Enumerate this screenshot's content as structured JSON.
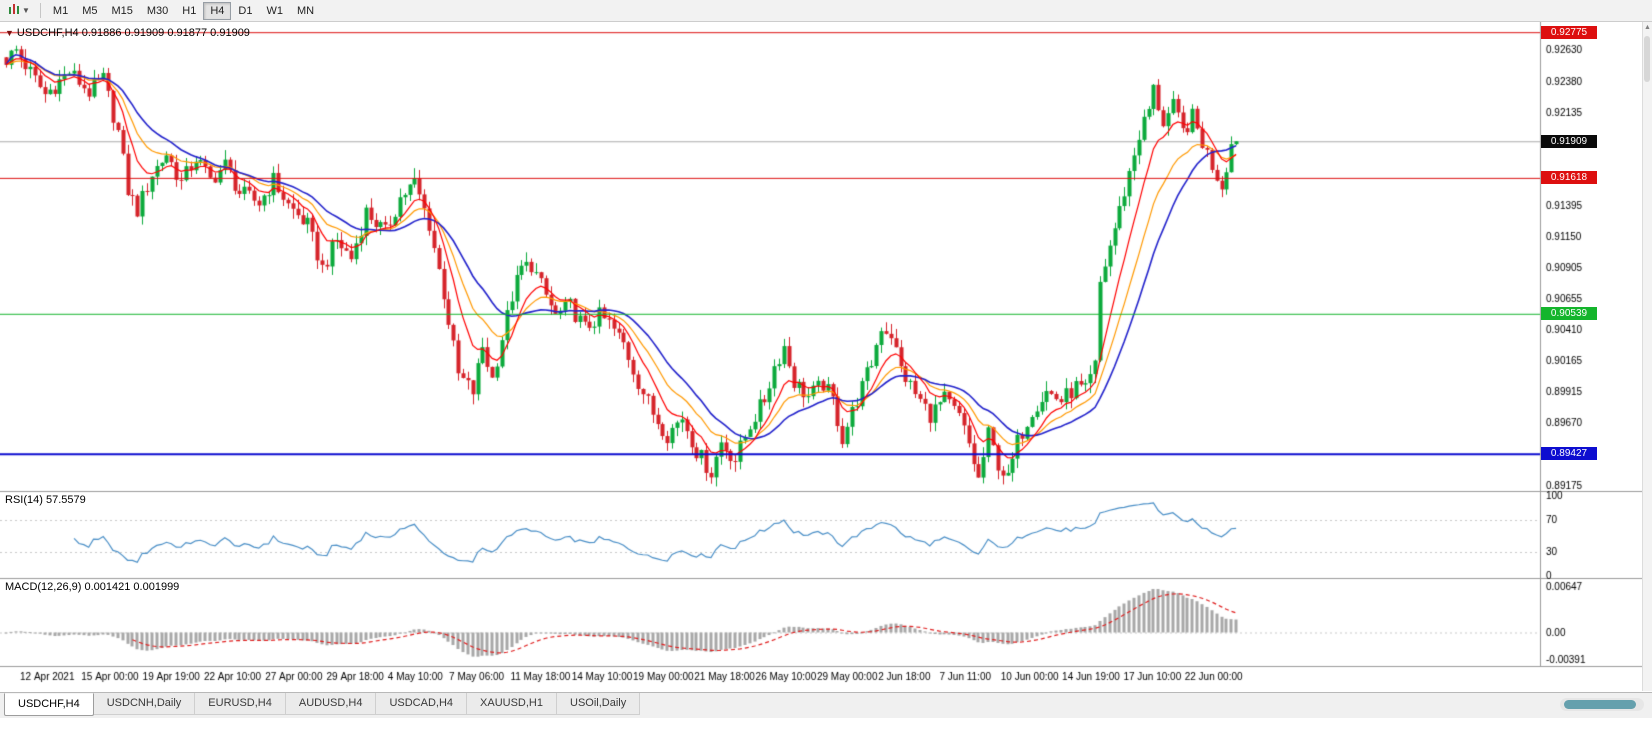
{
  "colors": {
    "bull": "#0caa3c",
    "bear": "#d6242b",
    "ma_fast": "#ff0000",
    "ma_mid": "#ff9900",
    "ma_slow": "#2323cc",
    "rsi_line": "#4a8fc7",
    "rsi_level": "#c9c9c9",
    "macd_hist": "#a8a8a8",
    "macd_signal": "#e02020",
    "axis_text": "#000000",
    "separator": "#9a9a9a"
  },
  "toolbar": {
    "chart_type_tooltip": "Chart type",
    "timeframes": [
      "M1",
      "M5",
      "M15",
      "M30",
      "H1",
      "H4",
      "D1",
      "W1",
      "MN"
    ],
    "active_timeframe": "H4"
  },
  "chart_header": {
    "marker": "▼",
    "text": "USDCHF,H4 0.91886 0.91909 0.91877 0.91909"
  },
  "price_tags": [
    {
      "label": "0.92775",
      "value": 0.92775,
      "bg": "#dd0f0f",
      "fg": "#ffffff",
      "line_color": "#dd0f0f",
      "line_width": 1,
      "last": false
    },
    {
      "label": "0.91909",
      "value": 0.91909,
      "bg": "#0a0a0a",
      "fg": "#ffffff",
      "line_color": "#ababab",
      "line_width": 1,
      "last": true
    },
    {
      "label": "0.91618",
      "value": 0.91618,
      "bg": "#dd0f0f",
      "fg": "#ffffff",
      "line_color": "#dd0f0f",
      "line_width": 1,
      "last": false
    },
    {
      "label": "0.90539",
      "value": 0.90539,
      "bg": "#14b52c",
      "fg": "#ffffff",
      "line_color": "#14b52c",
      "line_width": 1,
      "last": false
    },
    {
      "label": "0.89427",
      "value": 0.89427,
      "bg": "#0d0dd0",
      "fg": "#ffffff",
      "line_color": "#0d0dd0",
      "line_width": 2,
      "last": false
    }
  ],
  "tabs": [
    {
      "label": "USDCHF,H4",
      "active": true
    },
    {
      "label": "USDCNH,Daily",
      "active": false
    },
    {
      "label": "EURUSD,H4",
      "active": false
    },
    {
      "label": "AUDUSD,H4",
      "active": false
    },
    {
      "label": "USDCAD,H4",
      "active": false
    },
    {
      "label": "XAUUSD,H1",
      "active": false
    },
    {
      "label": "USOil,Daily",
      "active": false
    }
  ],
  "chart_data": {
    "type": "candlestick",
    "symbol": "USDCHF",
    "timeframe": "H4",
    "open": 0.91886,
    "high": 0.91909,
    "low": 0.91877,
    "close": 0.91909,
    "last_price": 0.91909,
    "levels": [
      0.92775,
      0.91618,
      0.90539,
      0.89427
    ],
    "y_axis": {
      "min": 0.8914,
      "max": 0.9284,
      "ticks": [
        0.9263,
        0.9238,
        0.92135,
        0.9189,
        0.9164,
        0.91395,
        0.9115,
        0.90905,
        0.90655,
        0.9041,
        0.90165,
        0.89915,
        0.8967,
        0.89425,
        0.89175
      ]
    },
    "x_labels": [
      "12 Apr 2021",
      "15 Apr 00:00",
      "19 Apr 19:00",
      "22 Apr 10:00",
      "27 Apr 00:00",
      "29 Apr 18:00",
      "4 May 10:00",
      "7 May 06:00",
      "11 May 18:00",
      "14 May 10:00",
      "19 May 00:00",
      "21 May 18:00",
      "26 May 10:00",
      "29 May 00:00",
      "2 Jun 18:00",
      "7 Jun 11:00",
      "10 Jun 00:00",
      "14 Jun 19:00",
      "17 Jun 10:00",
      "22 Jun 00:00"
    ],
    "price_waypoints": [
      [
        0,
        0.9256
      ],
      [
        2,
        0.9263
      ],
      [
        8,
        0.9228
      ],
      [
        13,
        0.9246
      ],
      [
        17,
        0.923
      ],
      [
        20,
        0.924
      ],
      [
        23,
        0.9198
      ],
      [
        25,
        0.9152
      ],
      [
        27,
        0.9136
      ],
      [
        30,
        0.9165
      ],
      [
        33,
        0.9181
      ],
      [
        36,
        0.9158
      ],
      [
        39,
        0.9178
      ],
      [
        42,
        0.916
      ],
      [
        45,
        0.9172
      ],
      [
        48,
        0.915
      ],
      [
        52,
        0.9142
      ],
      [
        55,
        0.916
      ],
      [
        58,
        0.914
      ],
      [
        62,
        0.9124
      ],
      [
        65,
        0.909
      ],
      [
        68,
        0.9112
      ],
      [
        71,
        0.9098
      ],
      [
        74,
        0.9135
      ],
      [
        78,
        0.9118
      ],
      [
        81,
        0.9146
      ],
      [
        84,
        0.9158
      ],
      [
        87,
        0.9125
      ],
      [
        90,
        0.907
      ],
      [
        93,
        0.9005
      ],
      [
        96,
        0.8992
      ],
      [
        98,
        0.9028
      ],
      [
        100,
        0.9002
      ],
      [
        102,
        0.9035
      ],
      [
        104,
        0.9068
      ],
      [
        106,
        0.909
      ],
      [
        108,
        0.9093
      ],
      [
        110,
        0.9076
      ],
      [
        113,
        0.9052
      ],
      [
        116,
        0.906
      ],
      [
        119,
        0.9042
      ],
      [
        122,
        0.9052
      ],
      [
        124,
        0.9046
      ],
      [
        127,
        0.903
      ],
      [
        130,
        0.9
      ],
      [
        133,
        0.8975
      ],
      [
        136,
        0.8958
      ],
      [
        139,
        0.8972
      ],
      [
        142,
        0.8945
      ],
      [
        145,
        0.8928
      ],
      [
        147,
        0.8952
      ],
      [
        150,
        0.8938
      ],
      [
        153,
        0.8966
      ],
      [
        156,
        0.8986
      ],
      [
        158,
        0.9012
      ],
      [
        160,
        0.9028
      ],
      [
        162,
        0.9
      ],
      [
        165,
        0.8988
      ],
      [
        168,
        0.8998
      ],
      [
        170,
        0.8985
      ],
      [
        172,
        0.8955
      ],
      [
        175,
        0.8986
      ],
      [
        178,
        0.9015
      ],
      [
        180,
        0.9044
      ],
      [
        182,
        0.9038
      ],
      [
        184,
        0.901
      ],
      [
        187,
        0.899
      ],
      [
        190,
        0.8974
      ],
      [
        193,
        0.8986
      ],
      [
        196,
        0.8972
      ],
      [
        198,
        0.895
      ],
      [
        200,
        0.8922
      ],
      [
        202,
        0.8958
      ],
      [
        204,
        0.8935
      ],
      [
        206,
        0.8922
      ],
      [
        208,
        0.8952
      ],
      [
        211,
        0.8978
      ],
      [
        214,
        0.8992
      ],
      [
        217,
        0.8985
      ],
      [
        220,
        0.8996
      ],
      [
        222,
        0.8992
      ],
      [
        224,
        0.9012
      ],
      [
        225,
        0.9078
      ],
      [
        227,
        0.9108
      ],
      [
        229,
        0.9136
      ],
      [
        231,
        0.9166
      ],
      [
        233,
        0.9196
      ],
      [
        235,
        0.9216
      ],
      [
        236,
        0.9232
      ],
      [
        238,
        0.9206
      ],
      [
        240,
        0.9218
      ],
      [
        242,
        0.9198
      ],
      [
        244,
        0.921
      ],
      [
        246,
        0.919
      ],
      [
        248,
        0.9172
      ],
      [
        250,
        0.9156
      ],
      [
        252,
        0.91886
      ],
      [
        253,
        0.91909
      ]
    ],
    "moving_averages": [
      {
        "name": "ma-mid",
        "type": "ema",
        "period": 15,
        "color_key": "ma_mid",
        "width": 1.2
      },
      {
        "name": "ma-slow",
        "type": "lwma",
        "period": 30,
        "color_key": "ma_slow",
        "width": 1.6
      },
      {
        "name": "ma-fast",
        "type": "ema",
        "period": 8,
        "color_key": "ma_fast",
        "width": 1.2
      }
    ],
    "indicators": {
      "rsi": {
        "label": "RSI(14)",
        "value": "57.5579",
        "period": 14,
        "levels": [
          100,
          70,
          30,
          0
        ],
        "dashed_levels": [
          70,
          30
        ]
      },
      "macd": {
        "label": "MACD(12,26,9)",
        "values": "0.001421 0.001999",
        "fast": 12,
        "slow": 26,
        "signal": 9,
        "axis": [
          0.00647,
          0,
          -0.00391
        ]
      }
    }
  }
}
